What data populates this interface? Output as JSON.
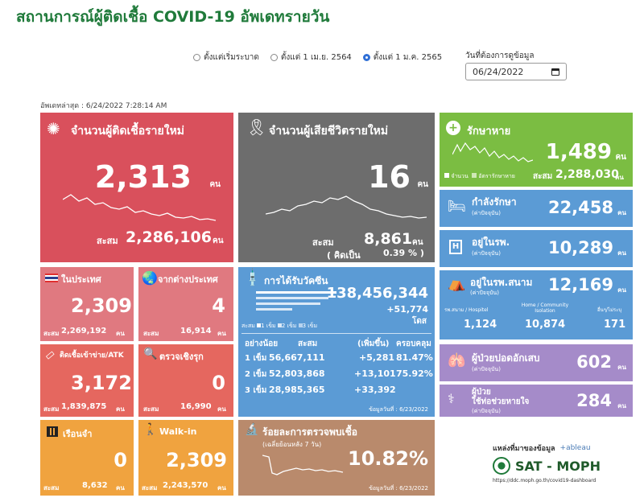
{
  "header": {
    "title": "สถานการณ์ผู้ติดเชื้อ COVID-19 อัพเดทรายวัน",
    "updated": "อัพเดทล่าสุด : 6/24/2022 7:28:14 AM"
  },
  "filters": {
    "options": [
      "ตั้งแต่เริ่มระบาด",
      "ตั้งแต่ 1 เม.ย. 2564",
      "ตั้งแต่ 1 ม.ค. 2565"
    ],
    "selected_index": 2,
    "date_label": "วันที่ต้องการดูข้อมูล",
    "date_value": "06/24/2022"
  },
  "unit": "คน",
  "cum_label": "สะสม",
  "new_cases": {
    "title": "จำนวนผู้ติดเชื้อรายใหม่",
    "value": "2,313",
    "cum_value": "2,286,106",
    "color": "#d9505c"
  },
  "deaths": {
    "title": "จำนวนผู้เสียชีวิตรายใหม่",
    "value": "16",
    "cum_value": "8,861",
    "pct_label": "( คิดเป็น",
    "pct_value": "0.39 % )",
    "color": "#6d6d6d"
  },
  "recovered": {
    "title": "รักษาหาย",
    "value": "1,489",
    "legend_count": "จำนวน",
    "legend_rate": "อัตรารักษาหาย",
    "cum_value": "2,288,030",
    "color": "#7bbd42"
  },
  "in_treatment": {
    "title": "กำลังรักษา",
    "note": "(ค่าปัจจุบัน)",
    "value": "22,458",
    "color": "#5b9bd5"
  },
  "hospital": {
    "title": "อยู่ในรพ.",
    "note": "(ค่าปัจจุบัน)",
    "value": "10,289",
    "color": "#5b9bd5"
  },
  "field_hospital": {
    "title": "อยู่ในรพ.สนาม",
    "note": "(ค่าปัจจุบัน)",
    "value": "12,169",
    "cols": [
      {
        "label": "รพ.สนาม / Hospitel",
        "value": "1,124"
      },
      {
        "label": "Home / Community Isolation",
        "value": "10,874"
      },
      {
        "label": "อื่นๆ/ไม่ระบุ",
        "value": "171"
      }
    ],
    "color": "#5b9bd5"
  },
  "domestic": {
    "title": "ในประเทศ",
    "value": "2,309",
    "cum_value": "2,269,192",
    "color": "#e07980"
  },
  "abroad": {
    "title": "จากต่างประเทศ",
    "value": "4",
    "cum_value": "16,914",
    "color": "#e07980"
  },
  "atk": {
    "title": "ติดเชื้อเข้าข่าย/ATK",
    "value": "3,172",
    "cum_value": "1,839,875",
    "color": "#e5675f"
  },
  "active_search": {
    "title": "ตรวจเชิงรุก",
    "value": "0",
    "cum_value": "16,990",
    "color": "#e5675f"
  },
  "prison": {
    "title": "เรือนจำ",
    "value": "0",
    "cum_value": "8,632",
    "color": "#f0a33f"
  },
  "walkin": {
    "title": "Walk-in",
    "value": "2,309",
    "cum_value": "2,243,570",
    "color": "#f0a33f"
  },
  "vaccine": {
    "title": "การได้รับวัคซีน",
    "total": "138,456,344",
    "increase": "+51,774",
    "dose_unit": "โดส",
    "legend": [
      "สะสม",
      "1 เข็ม",
      "2 เข็ม",
      "3 เข็ม"
    ],
    "headers": [
      "อย่างน้อย",
      "สะสม",
      "(เพิ่มขึ้น)",
      "ครอบคลุม"
    ],
    "rows": [
      {
        "dose": "1 เข็ม",
        "cum": "56,667,111",
        "inc": "+5,281",
        "cov": "81.47%"
      },
      {
        "dose": "2 เข็ม",
        "cum": "52,803,868",
        "inc": "+13,101",
        "cov": "75.92%"
      },
      {
        "dose": "3 เข็ม",
        "cum": "28,985,365",
        "inc": "+33,392",
        "cov": ""
      }
    ],
    "data_date": "ข้อมูลวันที่ : 6/23/2022",
    "color": "#5b9bd5"
  },
  "pneumonia": {
    "title": "ผู้ป่วยปอดอักเสบ",
    "note": "(ค่าปัจจุบัน)",
    "value": "602",
    "color": "#a58bc9"
  },
  "ventilator": {
    "title": "ผู้ป่วย ใช้ท่อช่วยหายใจ",
    "title_line1": "ผู้ป่วย",
    "title_line2": "ใช้ท่อช่วยหายใจ",
    "note": "(ค่าปัจจุบัน)",
    "value": "284",
    "color": "#a58bc9"
  },
  "positivity": {
    "title": "ร้อยละการตรวจพบเชื้อ",
    "note": "(เฉลี่ยย้อนหลัง 7 วัน)",
    "value": "10.82%",
    "data_date": "ข้อมูลวันที่ : 6/23/2022",
    "color": "#b98a6c"
  },
  "source": {
    "label": "แหล่งที่มาของข้อมูล",
    "tableau": "+ableau",
    "brand": "SAT - MOPH",
    "url": "https://ddc.moph.go.th/covid19-dashboard"
  }
}
